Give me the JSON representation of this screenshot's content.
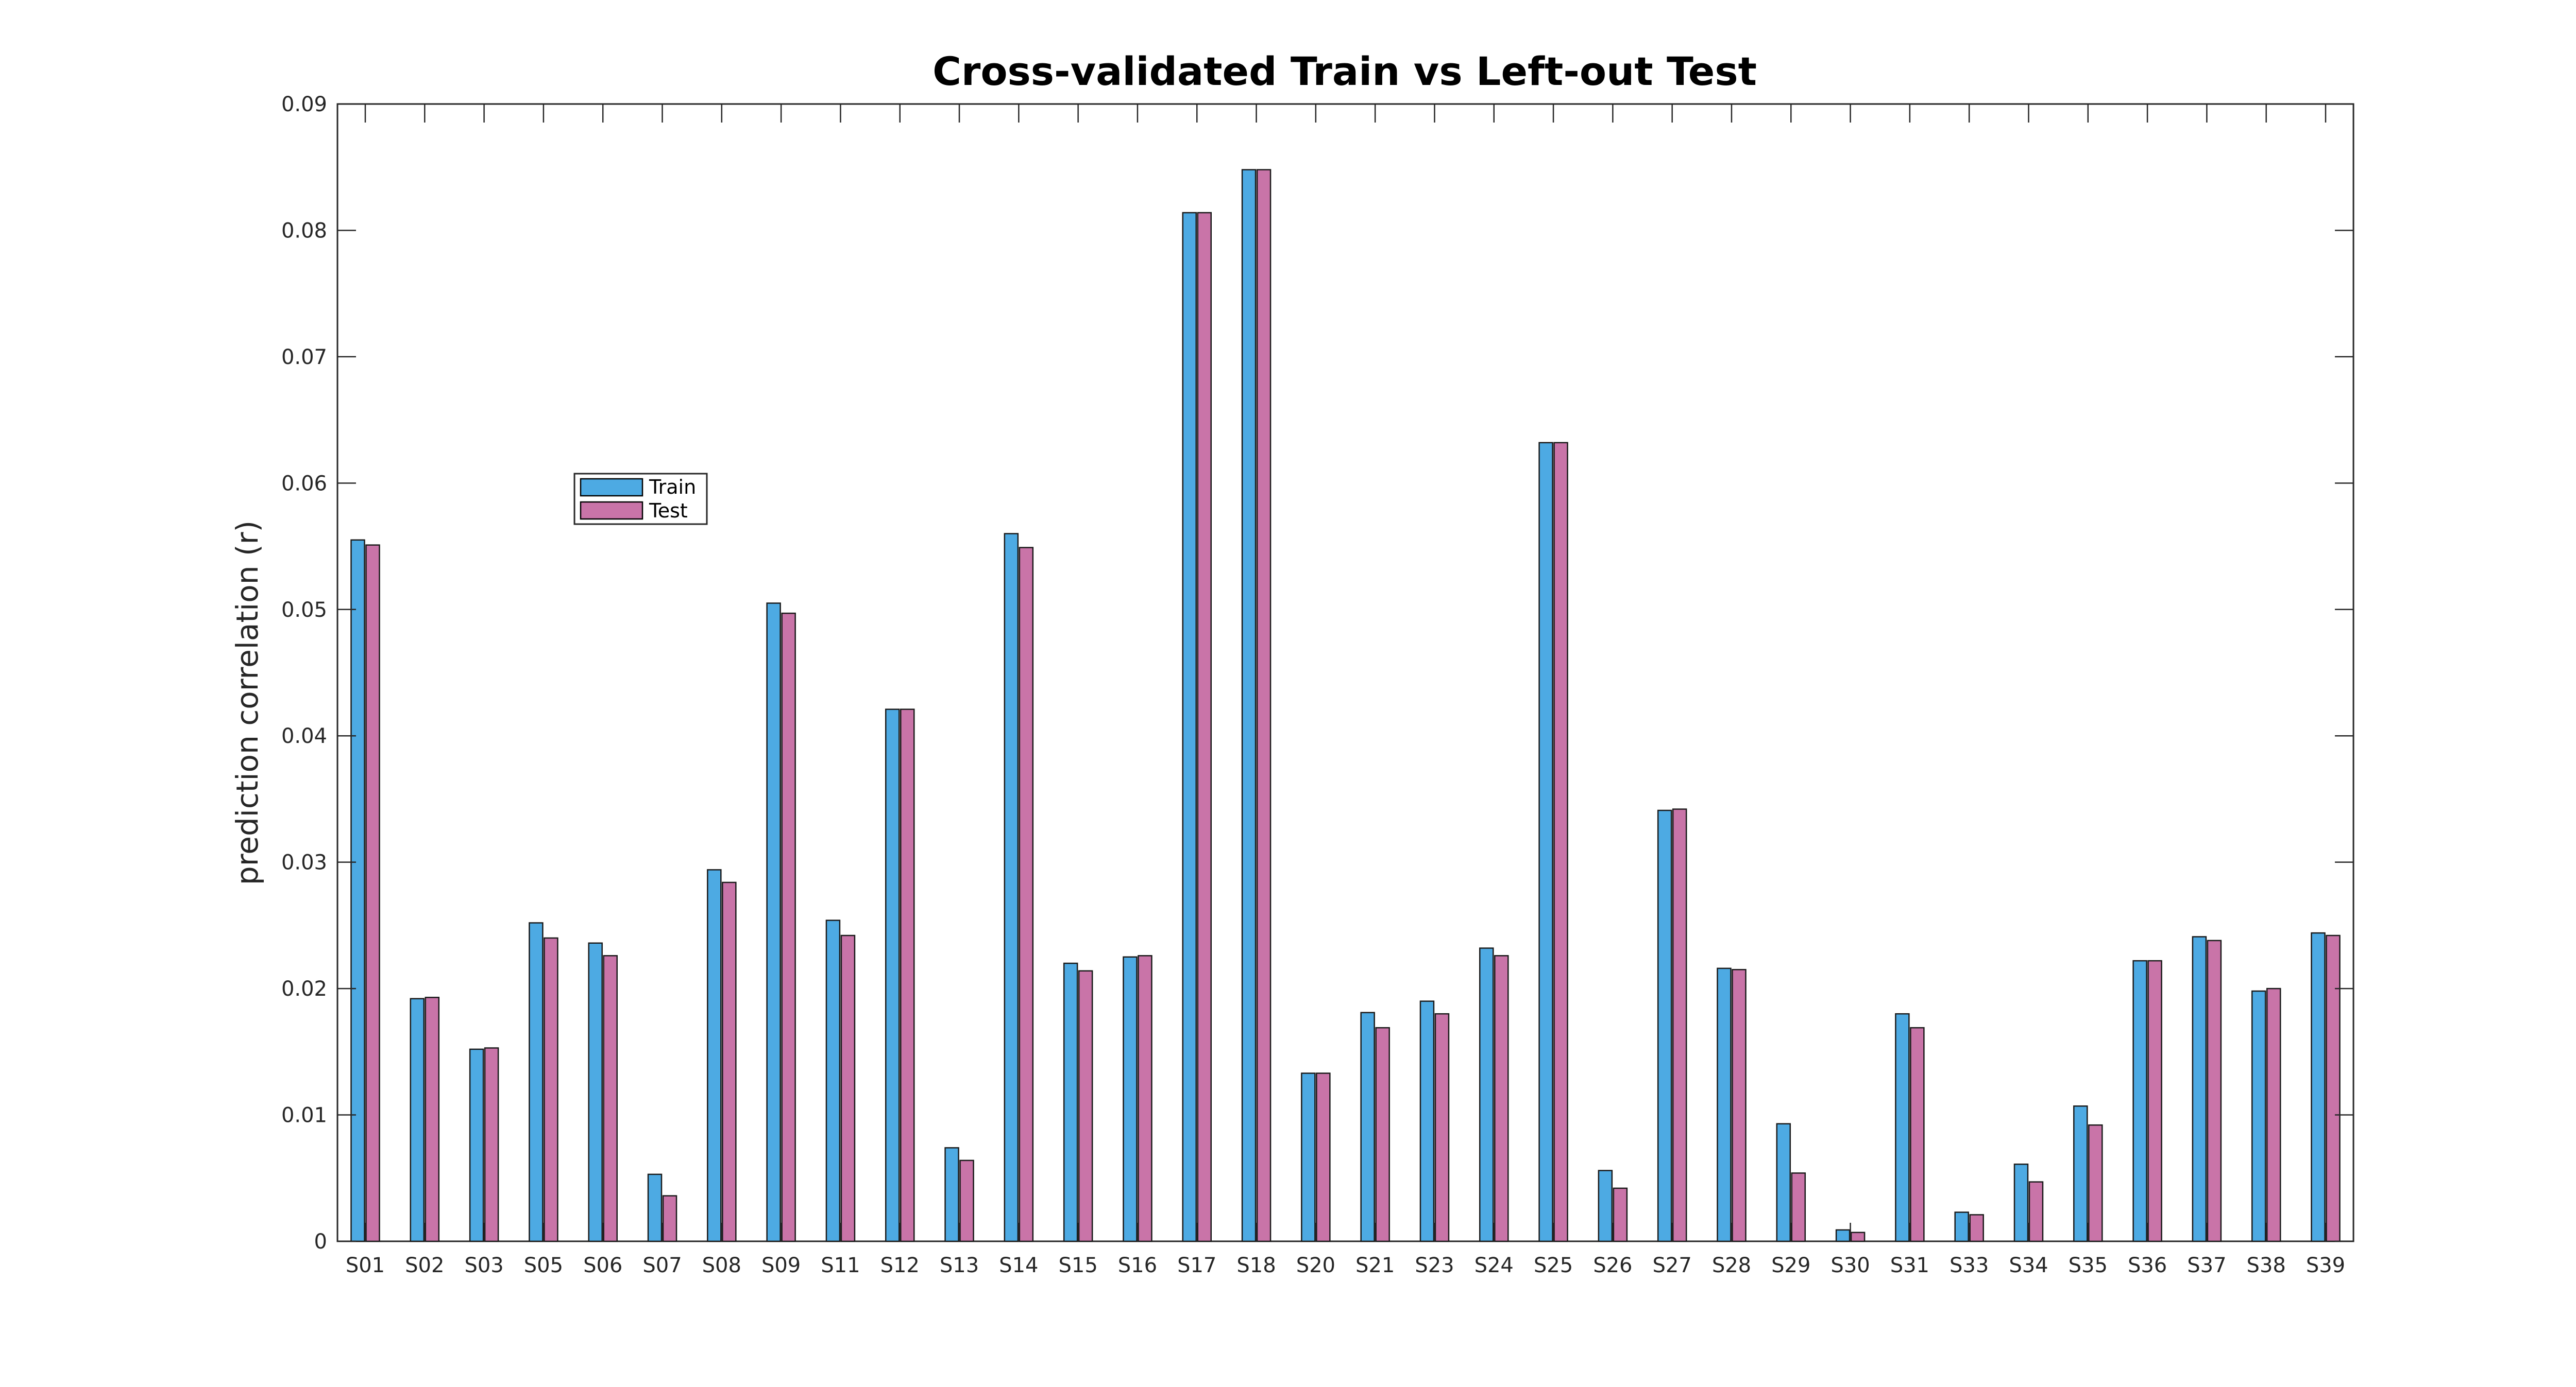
{
  "chart_data": {
    "type": "bar",
    "title": "Cross-validated Train vs Left-out Test",
    "xlabel": "",
    "ylabel": "prediction correlation (r)",
    "ylim": [
      0,
      0.09
    ],
    "yticks": [
      "0",
      "0.01",
      "0.02",
      "0.03",
      "0.04",
      "0.05",
      "0.06",
      "0.07",
      "0.08",
      "0.09"
    ],
    "grid": false,
    "legend_position": "upper-left",
    "categories": [
      "S01",
      "S02",
      "S03",
      "S05",
      "S06",
      "S07",
      "S08",
      "S09",
      "S11",
      "S12",
      "S13",
      "S14",
      "S15",
      "S16",
      "S17",
      "S18",
      "S20",
      "S21",
      "S23",
      "S24",
      "S25",
      "S26",
      "S27",
      "S28",
      "S29",
      "S30",
      "S31",
      "S33",
      "S34",
      "S35",
      "S36",
      "S37",
      "S38",
      "S39"
    ],
    "series": [
      {
        "name": "Train",
        "color": "#4daae3",
        "values": [
          0.0555,
          0.0192,
          0.0152,
          0.0252,
          0.0236,
          0.0053,
          0.0294,
          0.0505,
          0.0254,
          0.0421,
          0.0074,
          0.056,
          0.022,
          0.0225,
          0.0814,
          0.0848,
          0.0133,
          0.0181,
          0.019,
          0.0232,
          0.0632,
          0.0056,
          0.0341,
          0.0216,
          0.0093,
          0.0009,
          0.018,
          0.0023,
          0.0061,
          0.0107,
          0.0222,
          0.0241,
          0.0198,
          0.0244
        ]
      },
      {
        "name": "Test",
        "color": "#c974a8",
        "values": [
          0.0551,
          0.0193,
          0.0153,
          0.024,
          0.0226,
          0.0036,
          0.0284,
          0.0497,
          0.0242,
          0.0421,
          0.0064,
          0.0549,
          0.0214,
          0.0226,
          0.0814,
          0.0848,
          0.0133,
          0.0169,
          0.018,
          0.0226,
          0.0632,
          0.0042,
          0.0342,
          0.0215,
          0.0054,
          0.0007,
          0.0169,
          0.0021,
          0.0047,
          0.0092,
          0.0222,
          0.0238,
          0.02,
          0.0242
        ]
      }
    ]
  }
}
